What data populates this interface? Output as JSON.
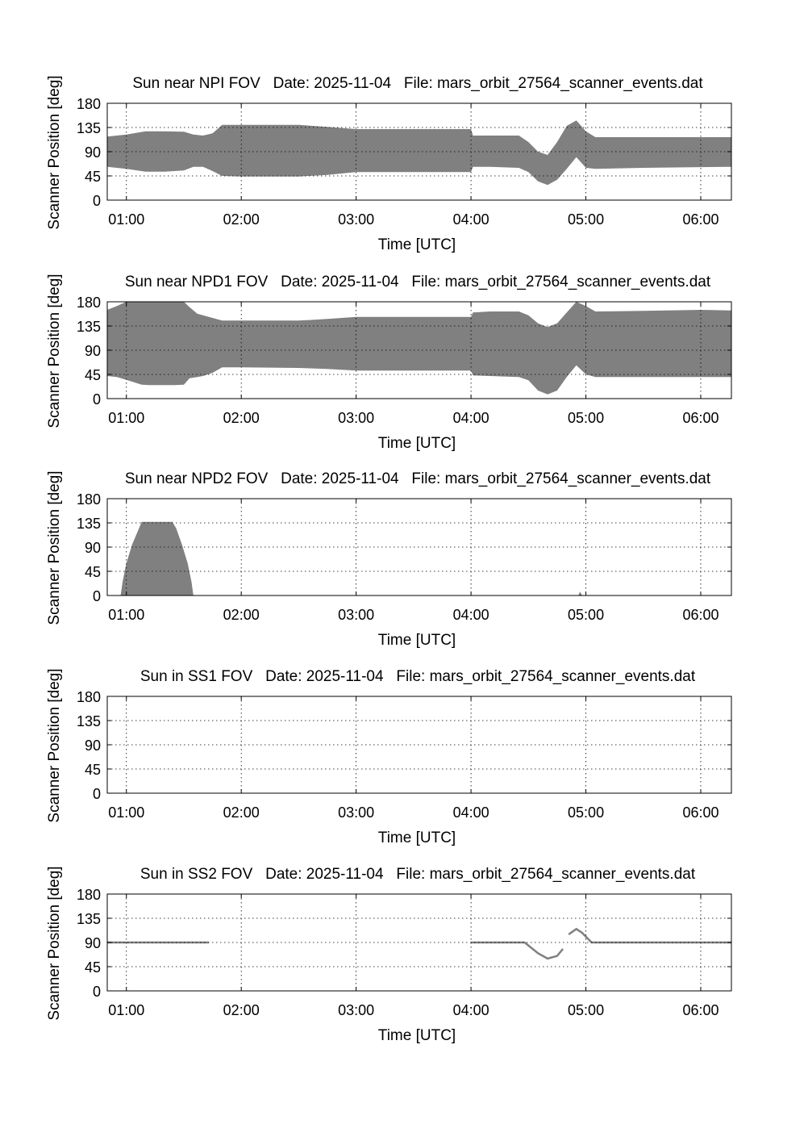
{
  "chart_data": [
    {
      "type": "area",
      "title": "Sun near NPI FOV   Date: 2025-11-04   File: mars_orbit_27564_scanner_events.dat",
      "xlabel": "Time [UTC]",
      "ylabel": "Scanner Position [deg]",
      "xlim": [
        "00:50",
        "06:16"
      ],
      "ylim": [
        0,
        180
      ],
      "xticks": [
        "01:00",
        "02:00",
        "03:00",
        "04:00",
        "05:00",
        "06:00"
      ],
      "yticks": [
        0,
        45,
        90,
        135,
        180
      ],
      "grid": true,
      "fill_color": "#808080",
      "series": [
        {
          "x": [
            "00:50",
            "01:00",
            "01:10",
            "01:20",
            "01:30",
            "01:35",
            "01:40",
            "01:45",
            "01:50",
            "02:00",
            "02:30",
            "02:45",
            "03:00",
            "03:30",
            "04:00",
            "04:01",
            "04:10",
            "04:25",
            "04:30",
            "04:35",
            "04:40",
            "04:45",
            "04:50",
            "04:55",
            "05:00",
            "05:05",
            "05:30",
            "06:16"
          ],
          "upper": [
            118,
            122,
            128,
            128,
            127,
            122,
            120,
            124,
            140,
            140,
            140,
            136,
            132,
            132,
            132,
            120,
            120,
            120,
            108,
            90,
            84,
            108,
            138,
            148,
            128,
            117,
            117,
            117
          ],
          "lower": [
            62,
            58,
            53,
            53,
            55,
            62,
            62,
            54,
            45,
            44,
            44,
            47,
            52,
            52,
            52,
            62,
            62,
            60,
            52,
            35,
            28,
            38,
            58,
            80,
            60,
            58,
            60,
            62
          ]
        }
      ]
    },
    {
      "type": "area",
      "title": "Sun near NPD1 FOV   Date: 2025-11-04   File: mars_orbit_27564_scanner_events.dat",
      "xlabel": "Time [UTC]",
      "ylabel": "Scanner Position [deg]",
      "xlim": [
        "00:50",
        "06:16"
      ],
      "ylim": [
        0,
        180
      ],
      "xticks": [
        "01:00",
        "02:00",
        "03:00",
        "04:00",
        "05:00",
        "06:00"
      ],
      "yticks": [
        0,
        45,
        90,
        135,
        180
      ],
      "grid": true,
      "fill_color": "#808080",
      "series": [
        {
          "x": [
            "00:50",
            "00:55",
            "01:00",
            "01:08",
            "01:12",
            "01:25",
            "01:30",
            "01:33",
            "01:37",
            "01:40",
            "01:45",
            "01:50",
            "02:00",
            "02:30",
            "02:45",
            "03:00",
            "03:30",
            "04:00",
            "04:01",
            "04:10",
            "04:25",
            "04:30",
            "04:35",
            "04:40",
            "04:45",
            "04:50",
            "04:55",
            "05:00",
            "05:05",
            "05:30",
            "06:00",
            "06:16"
          ],
          "upper": [
            165,
            172,
            180,
            180,
            180,
            180,
            180,
            170,
            158,
            155,
            150,
            145,
            145,
            145,
            148,
            152,
            152,
            152,
            160,
            162,
            162,
            155,
            140,
            133,
            140,
            160,
            180,
            172,
            162,
            163,
            165,
            164
          ],
          "lower": [
            42,
            40,
            35,
            26,
            25,
            25,
            26,
            38,
            40,
            42,
            48,
            58,
            58,
            57,
            55,
            52,
            52,
            52,
            43,
            42,
            40,
            34,
            15,
            8,
            15,
            40,
            62,
            45,
            40,
            40,
            40,
            40
          ]
        }
      ]
    },
    {
      "type": "area",
      "title": "Sun near NPD2 FOV   Date: 2025-11-04   File: mars_orbit_27564_scanner_events.dat",
      "xlabel": "Time [UTC]",
      "ylabel": "Scanner Position [deg]",
      "xlim": [
        "00:50",
        "06:16"
      ],
      "ylim": [
        0,
        180
      ],
      "xticks": [
        "01:00",
        "02:00",
        "03:00",
        "04:00",
        "05:00",
        "06:00"
      ],
      "yticks": [
        0,
        45,
        90,
        135,
        180
      ],
      "grid": true,
      "fill_color": "#808080",
      "series": [
        {
          "x": [
            "00:57",
            "00:58",
            "01:00",
            "01:03",
            "01:06",
            "01:08",
            "01:15",
            "01:24",
            "01:26",
            "01:29",
            "01:32",
            "01:34",
            "01:35",
            "04:56",
            "04:57",
            "04:58"
          ],
          "upper": [
            0,
            25,
            60,
            95,
            120,
            137,
            137,
            137,
            125,
            95,
            60,
            25,
            0,
            0,
            7,
            0
          ],
          "lower": [
            0,
            0,
            0,
            0,
            0,
            0,
            0,
            0,
            0,
            0,
            0,
            0,
            0,
            0,
            0,
            0
          ]
        }
      ]
    },
    {
      "type": "line",
      "title": "Sun in SS1 FOV   Date: 2025-11-04   File: mars_orbit_27564_scanner_events.dat",
      "xlabel": "Time [UTC]",
      "ylabel": "Scanner Position [deg]",
      "xlim": [
        "00:50",
        "06:16"
      ],
      "ylim": [
        0,
        180
      ],
      "xticks": [
        "01:00",
        "02:00",
        "03:00",
        "04:00",
        "05:00",
        "06:00"
      ],
      "yticks": [
        0,
        45,
        90,
        135,
        180
      ],
      "grid": true,
      "series": []
    },
    {
      "type": "line",
      "title": "Sun in SS2 FOV   Date: 2025-11-04   File: mars_orbit_27564_scanner_events.dat",
      "xlabel": "Time [UTC]",
      "ylabel": "Scanner Position [deg]",
      "xlim": [
        "00:50",
        "06:16"
      ],
      "ylim": [
        0,
        180
      ],
      "xticks": [
        "01:00",
        "02:00",
        "03:00",
        "04:00",
        "05:00",
        "06:00"
      ],
      "yticks": [
        0,
        45,
        90,
        135,
        180
      ],
      "grid": true,
      "line_color": "#808080",
      "segments": [
        {
          "x": [
            "00:50",
            "01:00",
            "01:20",
            "01:40",
            "01:43"
          ],
          "y": [
            90,
            90,
            90,
            90,
            90
          ]
        },
        {
          "x": [
            "04:00",
            "04:15",
            "04:28",
            "04:35",
            "04:40",
            "04:45",
            "04:48"
          ],
          "y": [
            90,
            90,
            90,
            70,
            60,
            65,
            78
          ]
        },
        {
          "x": [
            "04:51",
            "04:55",
            "04:58",
            "05:03",
            "05:20",
            "05:45",
            "06:00",
            "06:16"
          ],
          "y": [
            105,
            115,
            108,
            90,
            90,
            90,
            90,
            90
          ]
        }
      ]
    }
  ]
}
